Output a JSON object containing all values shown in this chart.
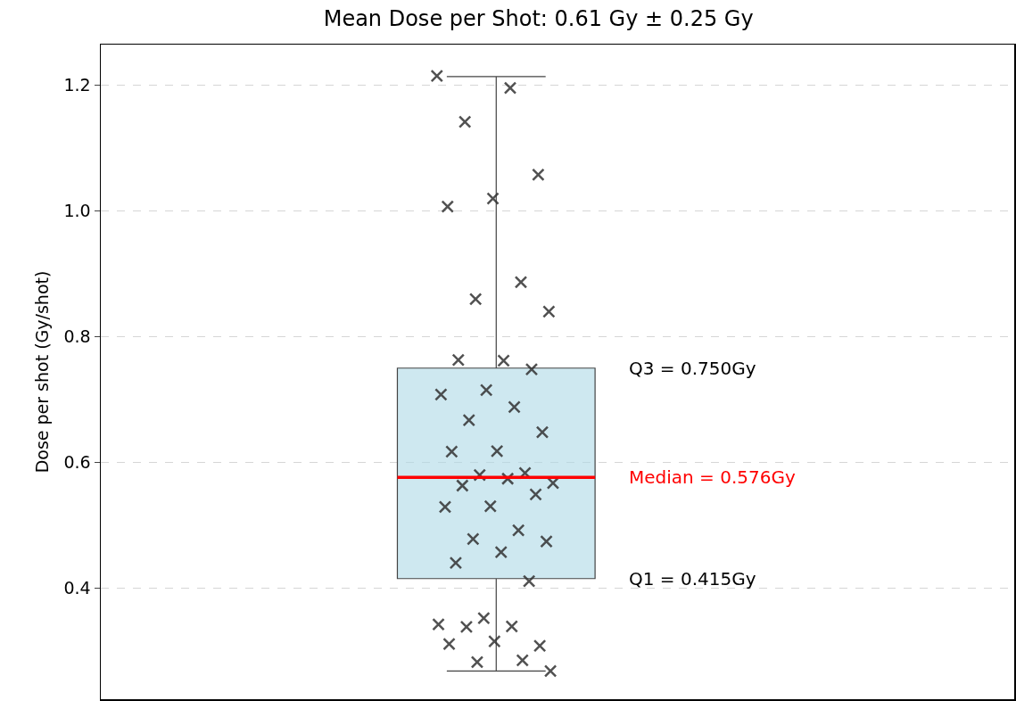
{
  "chart_data": {
    "type": "box",
    "title": "Mean Dose per Shot: 0.61 Gy ± 0.25 Gy",
    "ylabel": "Dose per shot (Gy/shot)",
    "categories": [
      null
    ],
    "ylim": [
      0.223,
      1.265
    ],
    "yticks": [
      0.4,
      0.6,
      0.8,
      {
        "value": 1.0,
        "label": "1.0"
      },
      1.2
    ],
    "grid": "y",
    "tick_labels": "y",
    "marker": "cross",
    "series": [
      {
        "type": "box",
        "color": "#add8e6",
        "boxes": [
          {
            "low": 0.268,
            "q1": 0.415,
            "median": 0.576,
            "q3": 0.75,
            "high": 1.214
          }
        ]
      },
      {
        "type": "scatter",
        "color": "#333333",
        "x": [
          null,
          null,
          null,
          null,
          null,
          null,
          null,
          null,
          null,
          null,
          null,
          null,
          null,
          null,
          null,
          null,
          null,
          null,
          null,
          null,
          null,
          null,
          null,
          null,
          null,
          null,
          null,
          null,
          null,
          null,
          null,
          null,
          null,
          null,
          null,
          null,
          null,
          null,
          null,
          null,
          null,
          null,
          null
        ],
        "values": [
          1.215,
          1.196,
          1.142,
          1.058,
          1.02,
          1.007,
          0.887,
          0.86,
          0.84,
          0.762,
          0.763,
          0.748,
          0.715,
          0.708,
          0.688,
          0.667,
          0.648,
          0.618,
          0.617,
          0.583,
          0.58,
          0.567,
          0.574,
          0.563,
          0.549,
          0.53,
          0.529,
          0.492,
          0.478,
          0.474,
          0.457,
          0.44,
          0.411,
          0.352,
          0.342,
          0.339,
          0.338,
          0.308,
          0.315,
          0.311,
          0.285,
          0.282,
          0.268
        ]
      }
    ],
    "annotations": [
      "Q3 = 0.750Gy",
      "Median = 0.576Gy",
      "Q1 = 0.415Gy"
    ]
  }
}
